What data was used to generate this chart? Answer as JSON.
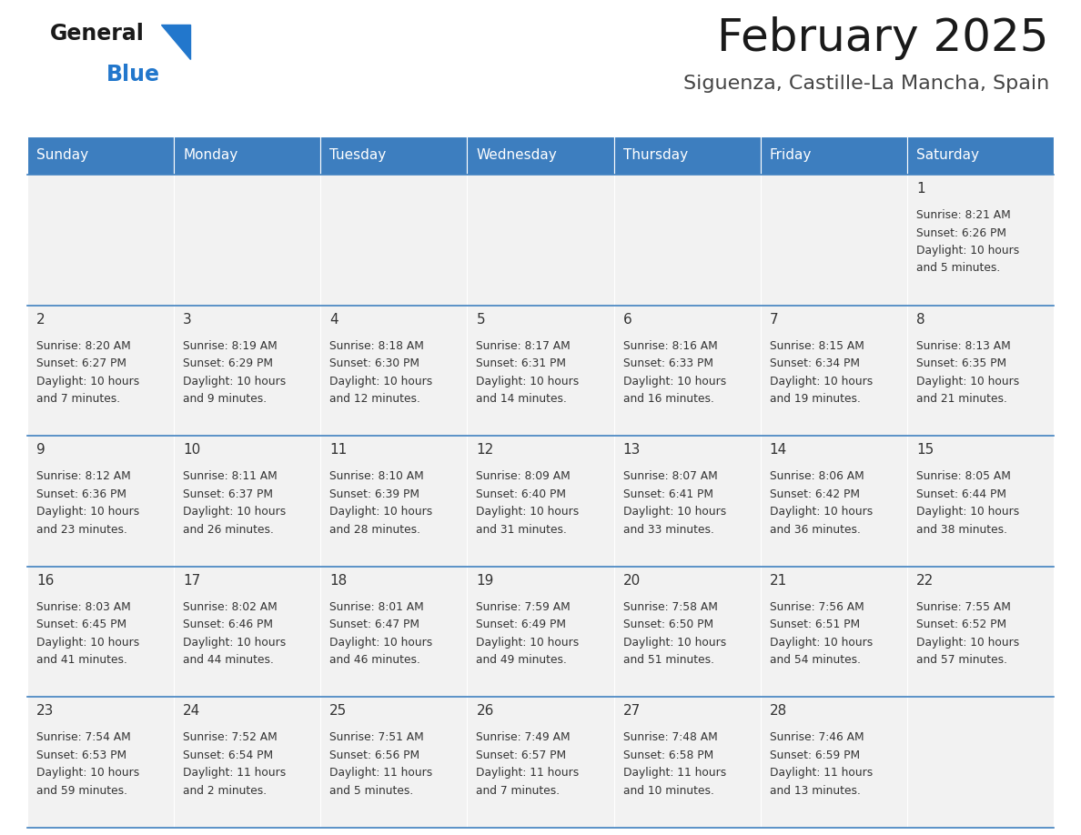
{
  "title": "February 2025",
  "subtitle": "Siguenza, Castille-La Mancha, Spain",
  "header_bg": "#3d7ebf",
  "header_text_color": "#ffffff",
  "days_of_week": [
    "Sunday",
    "Monday",
    "Tuesday",
    "Wednesday",
    "Thursday",
    "Friday",
    "Saturday"
  ],
  "cell_bg": "#f2f2f2",
  "row_line_color": "#4080bf",
  "day_number_color": "#333333",
  "info_text_color": "#333333",
  "calendar_data": [
    [
      {
        "day": null,
        "sunrise": null,
        "sunset": null,
        "daylight_line1": null,
        "daylight_line2": null
      },
      {
        "day": null,
        "sunrise": null,
        "sunset": null,
        "daylight_line1": null,
        "daylight_line2": null
      },
      {
        "day": null,
        "sunrise": null,
        "sunset": null,
        "daylight_line1": null,
        "daylight_line2": null
      },
      {
        "day": null,
        "sunrise": null,
        "sunset": null,
        "daylight_line1": null,
        "daylight_line2": null
      },
      {
        "day": null,
        "sunrise": null,
        "sunset": null,
        "daylight_line1": null,
        "daylight_line2": null
      },
      {
        "day": null,
        "sunrise": null,
        "sunset": null,
        "daylight_line1": null,
        "daylight_line2": null
      },
      {
        "day": 1,
        "sunrise": "8:21 AM",
        "sunset": "6:26 PM",
        "daylight_line1": "Daylight: 10 hours",
        "daylight_line2": "and 5 minutes."
      }
    ],
    [
      {
        "day": 2,
        "sunrise": "8:20 AM",
        "sunset": "6:27 PM",
        "daylight_line1": "Daylight: 10 hours",
        "daylight_line2": "and 7 minutes."
      },
      {
        "day": 3,
        "sunrise": "8:19 AM",
        "sunset": "6:29 PM",
        "daylight_line1": "Daylight: 10 hours",
        "daylight_line2": "and 9 minutes."
      },
      {
        "day": 4,
        "sunrise": "8:18 AM",
        "sunset": "6:30 PM",
        "daylight_line1": "Daylight: 10 hours",
        "daylight_line2": "and 12 minutes."
      },
      {
        "day": 5,
        "sunrise": "8:17 AM",
        "sunset": "6:31 PM",
        "daylight_line1": "Daylight: 10 hours",
        "daylight_line2": "and 14 minutes."
      },
      {
        "day": 6,
        "sunrise": "8:16 AM",
        "sunset": "6:33 PM",
        "daylight_line1": "Daylight: 10 hours",
        "daylight_line2": "and 16 minutes."
      },
      {
        "day": 7,
        "sunrise": "8:15 AM",
        "sunset": "6:34 PM",
        "daylight_line1": "Daylight: 10 hours",
        "daylight_line2": "and 19 minutes."
      },
      {
        "day": 8,
        "sunrise": "8:13 AM",
        "sunset": "6:35 PM",
        "daylight_line1": "Daylight: 10 hours",
        "daylight_line2": "and 21 minutes."
      }
    ],
    [
      {
        "day": 9,
        "sunrise": "8:12 AM",
        "sunset": "6:36 PM",
        "daylight_line1": "Daylight: 10 hours",
        "daylight_line2": "and 23 minutes."
      },
      {
        "day": 10,
        "sunrise": "8:11 AM",
        "sunset": "6:37 PM",
        "daylight_line1": "Daylight: 10 hours",
        "daylight_line2": "and 26 minutes."
      },
      {
        "day": 11,
        "sunrise": "8:10 AM",
        "sunset": "6:39 PM",
        "daylight_line1": "Daylight: 10 hours",
        "daylight_line2": "and 28 minutes."
      },
      {
        "day": 12,
        "sunrise": "8:09 AM",
        "sunset": "6:40 PM",
        "daylight_line1": "Daylight: 10 hours",
        "daylight_line2": "and 31 minutes."
      },
      {
        "day": 13,
        "sunrise": "8:07 AM",
        "sunset": "6:41 PM",
        "daylight_line1": "Daylight: 10 hours",
        "daylight_line2": "and 33 minutes."
      },
      {
        "day": 14,
        "sunrise": "8:06 AM",
        "sunset": "6:42 PM",
        "daylight_line1": "Daylight: 10 hours",
        "daylight_line2": "and 36 minutes."
      },
      {
        "day": 15,
        "sunrise": "8:05 AM",
        "sunset": "6:44 PM",
        "daylight_line1": "Daylight: 10 hours",
        "daylight_line2": "and 38 minutes."
      }
    ],
    [
      {
        "day": 16,
        "sunrise": "8:03 AM",
        "sunset": "6:45 PM",
        "daylight_line1": "Daylight: 10 hours",
        "daylight_line2": "and 41 minutes."
      },
      {
        "day": 17,
        "sunrise": "8:02 AM",
        "sunset": "6:46 PM",
        "daylight_line1": "Daylight: 10 hours",
        "daylight_line2": "and 44 minutes."
      },
      {
        "day": 18,
        "sunrise": "8:01 AM",
        "sunset": "6:47 PM",
        "daylight_line1": "Daylight: 10 hours",
        "daylight_line2": "and 46 minutes."
      },
      {
        "day": 19,
        "sunrise": "7:59 AM",
        "sunset": "6:49 PM",
        "daylight_line1": "Daylight: 10 hours",
        "daylight_line2": "and 49 minutes."
      },
      {
        "day": 20,
        "sunrise": "7:58 AM",
        "sunset": "6:50 PM",
        "daylight_line1": "Daylight: 10 hours",
        "daylight_line2": "and 51 minutes."
      },
      {
        "day": 21,
        "sunrise": "7:56 AM",
        "sunset": "6:51 PM",
        "daylight_line1": "Daylight: 10 hours",
        "daylight_line2": "and 54 minutes."
      },
      {
        "day": 22,
        "sunrise": "7:55 AM",
        "sunset": "6:52 PM",
        "daylight_line1": "Daylight: 10 hours",
        "daylight_line2": "and 57 minutes."
      }
    ],
    [
      {
        "day": 23,
        "sunrise": "7:54 AM",
        "sunset": "6:53 PM",
        "daylight_line1": "Daylight: 10 hours",
        "daylight_line2": "and 59 minutes."
      },
      {
        "day": 24,
        "sunrise": "7:52 AM",
        "sunset": "6:54 PM",
        "daylight_line1": "Daylight: 11 hours",
        "daylight_line2": "and 2 minutes."
      },
      {
        "day": 25,
        "sunrise": "7:51 AM",
        "sunset": "6:56 PM",
        "daylight_line1": "Daylight: 11 hours",
        "daylight_line2": "and 5 minutes."
      },
      {
        "day": 26,
        "sunrise": "7:49 AM",
        "sunset": "6:57 PM",
        "daylight_line1": "Daylight: 11 hours",
        "daylight_line2": "and 7 minutes."
      },
      {
        "day": 27,
        "sunrise": "7:48 AM",
        "sunset": "6:58 PM",
        "daylight_line1": "Daylight: 11 hours",
        "daylight_line2": "and 10 minutes."
      },
      {
        "day": 28,
        "sunrise": "7:46 AM",
        "sunset": "6:59 PM",
        "daylight_line1": "Daylight: 11 hours",
        "daylight_line2": "and 13 minutes."
      },
      {
        "day": null,
        "sunrise": null,
        "sunset": null,
        "daylight_line1": null,
        "daylight_line2": null
      }
    ]
  ],
  "logo_text_general": "General",
  "logo_text_blue": "Blue",
  "logo_color_general": "#1a1a1a",
  "logo_color_blue": "#2277cc",
  "logo_triangle_color": "#2277cc",
  "title_fontsize": 36,
  "subtitle_fontsize": 16,
  "header_fontsize": 11,
  "day_num_fontsize": 11,
  "info_fontsize": 8.8
}
